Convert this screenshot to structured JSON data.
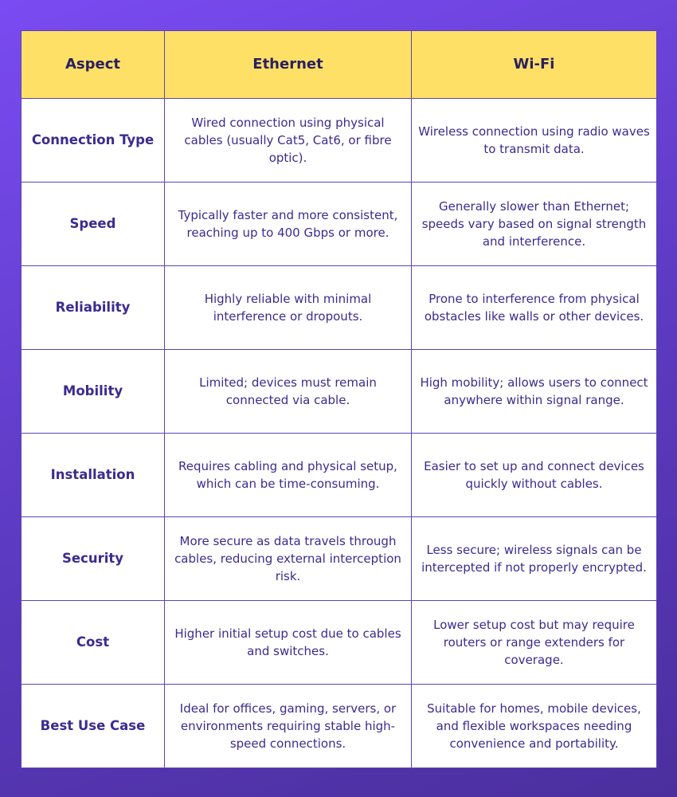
{
  "table": {
    "header": [
      "Aspect",
      "Ethernet",
      "Wi-Fi"
    ],
    "rows": [
      [
        "Connection Type",
        "Wired connection using physical cables (usually Cat5, Cat6, or fibre optic).",
        "Wireless connection using radio waves to transmit data."
      ],
      [
        "Speed",
        "Typically faster and more consistent, reaching up to 400 Gbps or more.",
        "Generally slower than Ethernet; speeds vary based on signal strength and interference."
      ],
      [
        "Reliability",
        "Highly reliable with minimal interference or dropouts.",
        "Prone to interference from physical obstacles like walls or other devices."
      ],
      [
        "Mobility",
        "Limited; devices must remain connected via cable.",
        "High mobility; allows users to connect anywhere within signal range."
      ],
      [
        "Installation",
        "Requires cabling and physical setup, which can be time-consuming.",
        "Easier to set up and connect devices quickly without cables."
      ],
      [
        "Security",
        "More secure as data travels through cables, reducing external interception risk.",
        "Less secure; wireless signals can be intercepted if not properly encrypted."
      ],
      [
        "Cost",
        "Higher initial setup cost due to cables and switches.",
        "Lower setup cost but may require routers or range extenders for coverage."
      ],
      [
        "Best Use Case",
        "Ideal for offices, gaming, servers, or environments requiring stable high-speed connections.",
        "Suitable for homes, mobile devices, and flexible workspaces needing convenience and portability."
      ]
    ]
  }
}
